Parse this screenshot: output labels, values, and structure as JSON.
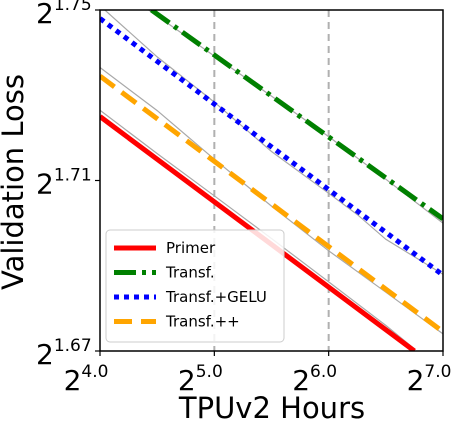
{
  "chart_data": {
    "type": "line",
    "xlabel": "TPUv2 Hours",
    "ylabel": "Validation Loss",
    "x_scale": "log2",
    "y_scale": "log2",
    "xlim": [
      4.0,
      7.0
    ],
    "ylim": [
      1.67,
      1.75
    ],
    "x_ticks": [
      {
        "exp": 4.0,
        "base": "2",
        "sup": "4.0"
      },
      {
        "exp": 5.0,
        "base": "2",
        "sup": "5.0"
      },
      {
        "exp": 6.0,
        "base": "2",
        "sup": "6.0"
      },
      {
        "exp": 7.0,
        "base": "2",
        "sup": "7.0"
      }
    ],
    "y_ticks": [
      {
        "exp": 1.67,
        "base": "2",
        "sup": "1.67"
      },
      {
        "exp": 1.71,
        "base": "2",
        "sup": "1.71"
      },
      {
        "exp": 1.75,
        "base": "2",
        "sup": "1.75"
      }
    ],
    "vgrid_at": [
      5.0,
      6.0
    ],
    "grid": "vertical dashed at 2^5.0 and 2^6.0",
    "legend_position": "lower-left",
    "series": [
      {
        "name": "Primer",
        "color": "#ff0000",
        "style": "solid",
        "fit": [
          [
            4.0,
            1.725
          ],
          [
            6.75,
            1.67
          ]
        ],
        "raw": [
          [
            4.0,
            1.7265
          ],
          [
            4.5,
            1.7163
          ],
          [
            5.0,
            1.7064
          ],
          [
            5.5,
            1.6964
          ],
          [
            6.0,
            1.6862
          ],
          [
            6.5,
            1.676
          ],
          [
            6.75,
            1.6705
          ]
        ]
      },
      {
        "name": "Transf.",
        "color": "#008000",
        "style": "dashdot",
        "fit": [
          [
            4.45,
            1.75
          ],
          [
            7.0,
            1.701
          ]
        ],
        "raw": [
          [
            4.4,
            1.7505
          ],
          [
            5.0,
            1.7392
          ],
          [
            5.5,
            1.7298
          ],
          [
            6.0,
            1.7203
          ],
          [
            6.5,
            1.7103
          ],
          [
            7.0,
            1.7
          ]
        ]
      },
      {
        "name": "Transf.+GELU",
        "color": "#0000ff",
        "style": "dotted",
        "fit": [
          [
            4.0,
            1.748
          ],
          [
            7.0,
            1.6878
          ]
        ],
        "raw": [
          [
            4.0,
            1.751
          ],
          [
            4.5,
            1.739
          ],
          [
            5.0,
            1.7284
          ],
          [
            5.5,
            1.7168
          ],
          [
            6.0,
            1.707
          ],
          [
            6.25,
            1.702
          ],
          [
            6.5,
            1.6962
          ],
          [
            7.0,
            1.688
          ]
        ]
      },
      {
        "name": "Transf.++",
        "color": "#ffa500",
        "style": "dashed",
        "fit": [
          [
            4.0,
            1.7345
          ],
          [
            7.0,
            1.6745
          ]
        ],
        "raw": [
          [
            4.0,
            1.7365
          ],
          [
            4.5,
            1.7264
          ],
          [
            5.0,
            1.715
          ],
          [
            5.5,
            1.704
          ],
          [
            6.0,
            1.6935
          ],
          [
            6.5,
            1.6838
          ],
          [
            7.0,
            1.674
          ]
        ]
      }
    ]
  }
}
